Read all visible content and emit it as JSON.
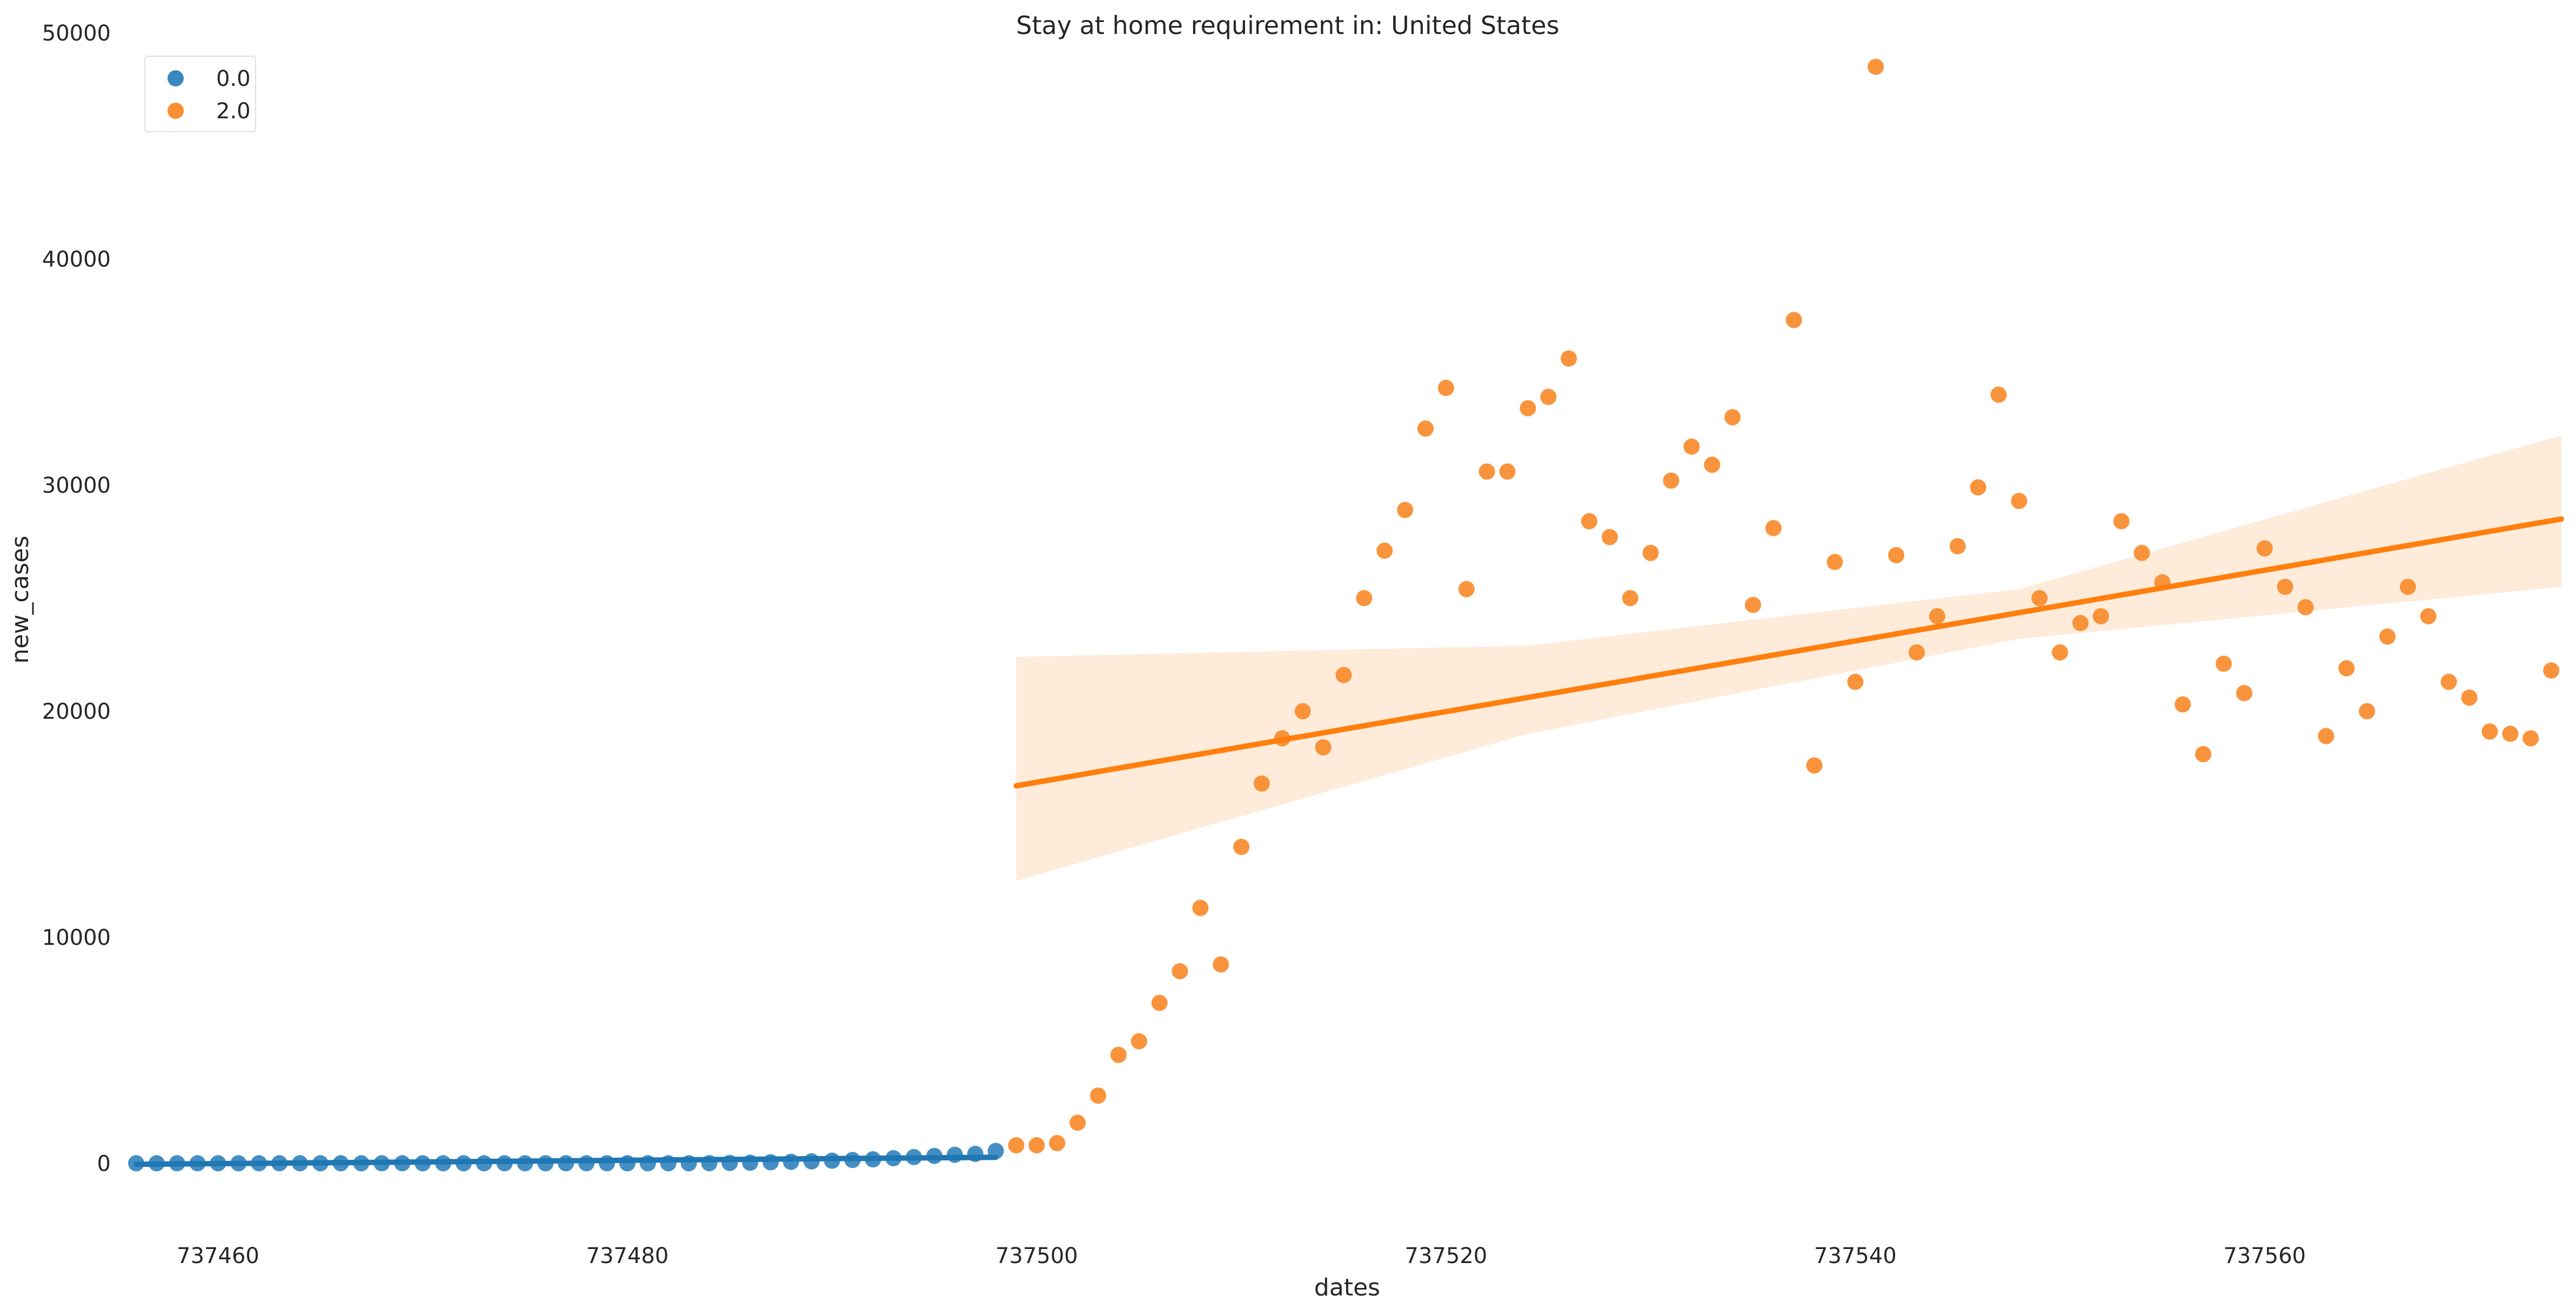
{
  "chart_data": {
    "type": "scatter",
    "title": "Stay at home requirement in: United States",
    "xlabel": "dates",
    "ylabel": "new_cases",
    "xlim": [
      737456,
      737574.5
    ],
    "ylim": [
      -3500,
      50500
    ],
    "xticks": [
      737460,
      737480,
      737500,
      737520,
      737540,
      737560
    ],
    "xtick_labels": [
      "737460",
      "737480",
      "737500",
      "737520",
      "737540",
      "737560"
    ],
    "yticks": [
      0,
      10000,
      20000,
      30000,
      40000,
      50000
    ],
    "ytick_labels": [
      "0",
      "10000",
      "20000",
      "30000",
      "40000",
      "50000"
    ],
    "grid": false,
    "legend": {
      "placement": "top-left",
      "entries": [
        {
          "label": "0.0",
          "color": "#3a88c0"
        },
        {
          "label": "2.0",
          "color": "#f98e31"
        }
      ]
    },
    "series": [
      {
        "name": "0.0",
        "color": "#3a88c0",
        "x": [
          737456,
          737457,
          737458,
          737459,
          737460,
          737461,
          737462,
          737463,
          737464,
          737465,
          737466,
          737467,
          737468,
          737469,
          737470,
          737471,
          737472,
          737473,
          737474,
          737475,
          737476,
          737477,
          737478,
          737479,
          737480,
          737481,
          737482,
          737483,
          737484,
          737485,
          737486,
          737487,
          737488,
          737489,
          737490,
          737491,
          737492,
          737493,
          737494,
          737495,
          737496,
          737497,
          737498
        ],
        "y": [
          5,
          5,
          5,
          5,
          5,
          5,
          5,
          5,
          5,
          5,
          5,
          5,
          5,
          5,
          5,
          5,
          5,
          5,
          5,
          5,
          5,
          5,
          5,
          5,
          5,
          5,
          5,
          5,
          10,
          20,
          30,
          50,
          70,
          90,
          120,
          150,
          180,
          230,
          280,
          330,
          380,
          420,
          550
        ],
        "regression": {
          "x": [
            737456,
            737498
          ],
          "y": [
            -40,
            270
          ]
        }
      },
      {
        "name": "2.0",
        "color": "#f98e31",
        "x": [
          737499,
          737500,
          737501,
          737502,
          737503,
          737504,
          737505,
          737506,
          737507,
          737508,
          737509,
          737510,
          737511,
          737512,
          737513,
          737514,
          737515,
          737516,
          737517,
          737518,
          737519,
          737520,
          737521,
          737522,
          737523,
          737524,
          737525,
          737526,
          737527,
          737528,
          737529,
          737530,
          737531,
          737532,
          737533,
          737534,
          737535,
          737536,
          737537,
          737538,
          737539,
          737540,
          737541,
          737542,
          737543,
          737544,
          737545,
          737546,
          737547,
          737548,
          737549,
          737550,
          737551,
          737552,
          737553,
          737554,
          737555,
          737556,
          737557,
          737558,
          737559,
          737560,
          737561,
          737562,
          737563,
          737564,
          737565,
          737566,
          737567,
          737568,
          737569,
          737570,
          737571,
          737572,
          737573,
          737574
        ],
        "y": [
          800,
          800,
          900,
          1800,
          3000,
          4800,
          5400,
          7100,
          8500,
          11300,
          8800,
          14000,
          16800,
          18800,
          20000,
          18400,
          21600,
          25000,
          27100,
          28900,
          32500,
          34300,
          25400,
          30600,
          30600,
          33400,
          33900,
          35600,
          28400,
          27700,
          25000,
          27000,
          30200,
          31700,
          30900,
          33000,
          24700,
          28100,
          37300,
          17600,
          26600,
          21300,
          48500,
          26900,
          22600,
          24200,
          27300,
          29900,
          34000,
          29300,
          25000,
          22600,
          23900,
          24200,
          28400,
          27000,
          25700,
          20300,
          18100,
          22100,
          20800,
          27200,
          25500,
          24600,
          18900,
          21900,
          20000,
          23300,
          25500,
          24200,
          21300,
          20600,
          19100,
          19000,
          18800,
          21800
        ],
        "regression": {
          "x": [
            737499,
            737574.5
          ],
          "y": [
            16700,
            28500
          ]
        },
        "ci_band": {
          "x": [
            737499,
            737524,
            737548,
            737574.5
          ],
          "upper": [
            22400,
            22900,
            25400,
            32200
          ],
          "lower": [
            12500,
            19000,
            23200,
            25500
          ]
        }
      }
    ]
  }
}
